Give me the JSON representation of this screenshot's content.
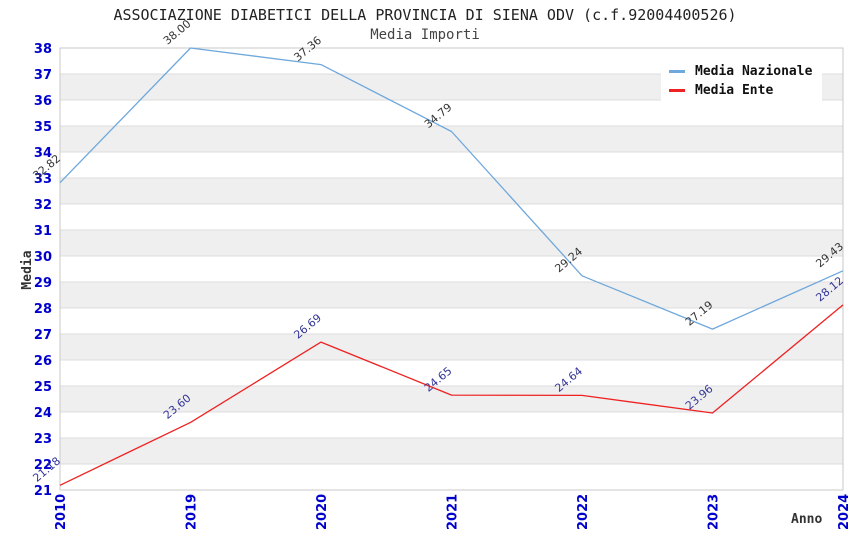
{
  "title": "ASSOCIAZIONE DIABETICI DELLA PROVINCIA DI SIENA ODV (c.f.92004400526)",
  "subtitle": "Media Importi",
  "axes": {
    "y_label": "Media",
    "x_label": "Anno"
  },
  "legend": {
    "position": "top-right",
    "items": [
      {
        "label": "Media Nazionale",
        "color": "#6fa8dc"
      },
      {
        "label": "Media Ente",
        "color": "#ee2222"
      }
    ]
  },
  "colors": {
    "tick_label": "#0000cc",
    "band": "#efefef",
    "grid": "#dcdcdc",
    "border": "#c8c8c8",
    "title": "#222222",
    "subtitle": "#444444",
    "axis_title": "#333333",
    "nazionale_line": "#6fa8dc",
    "nazionale_point_label": "#333333",
    "ente_line": "#ee2222",
    "ente_point_label": "#333399"
  },
  "chart_data": {
    "type": "line",
    "title": "ASSOCIAZIONE DIABETICI DELLA PROVINCIA DI SIENA ODV (c.f.92004400526)",
    "subtitle": "Media Importi",
    "xlabel": "Anno",
    "ylabel": "Media",
    "categories": [
      "2010",
      "2019",
      "2020",
      "2021",
      "2022",
      "2023",
      "2024"
    ],
    "series": [
      {
        "name": "Media Nazionale",
        "color": "#6fa8dc",
        "label_color": "#333333",
        "values": [
          32.82,
          38.0,
          37.36,
          34.79,
          29.24,
          27.19,
          29.43
        ]
      },
      {
        "name": "Media Ente",
        "color": "#ee2222",
        "label_color": "#333399",
        "values": [
          21.18,
          23.6,
          26.69,
          24.65,
          24.64,
          23.96,
          28.12
        ]
      }
    ],
    "ylim": [
      21,
      38
    ],
    "y_tick_step": 1,
    "grid": "horizontal-bands-alternating",
    "legend_position": "top-right",
    "point_label_format": "2-decimals",
    "point_label_rotation_deg": -40,
    "x_tick_rotation_deg": -90
  }
}
